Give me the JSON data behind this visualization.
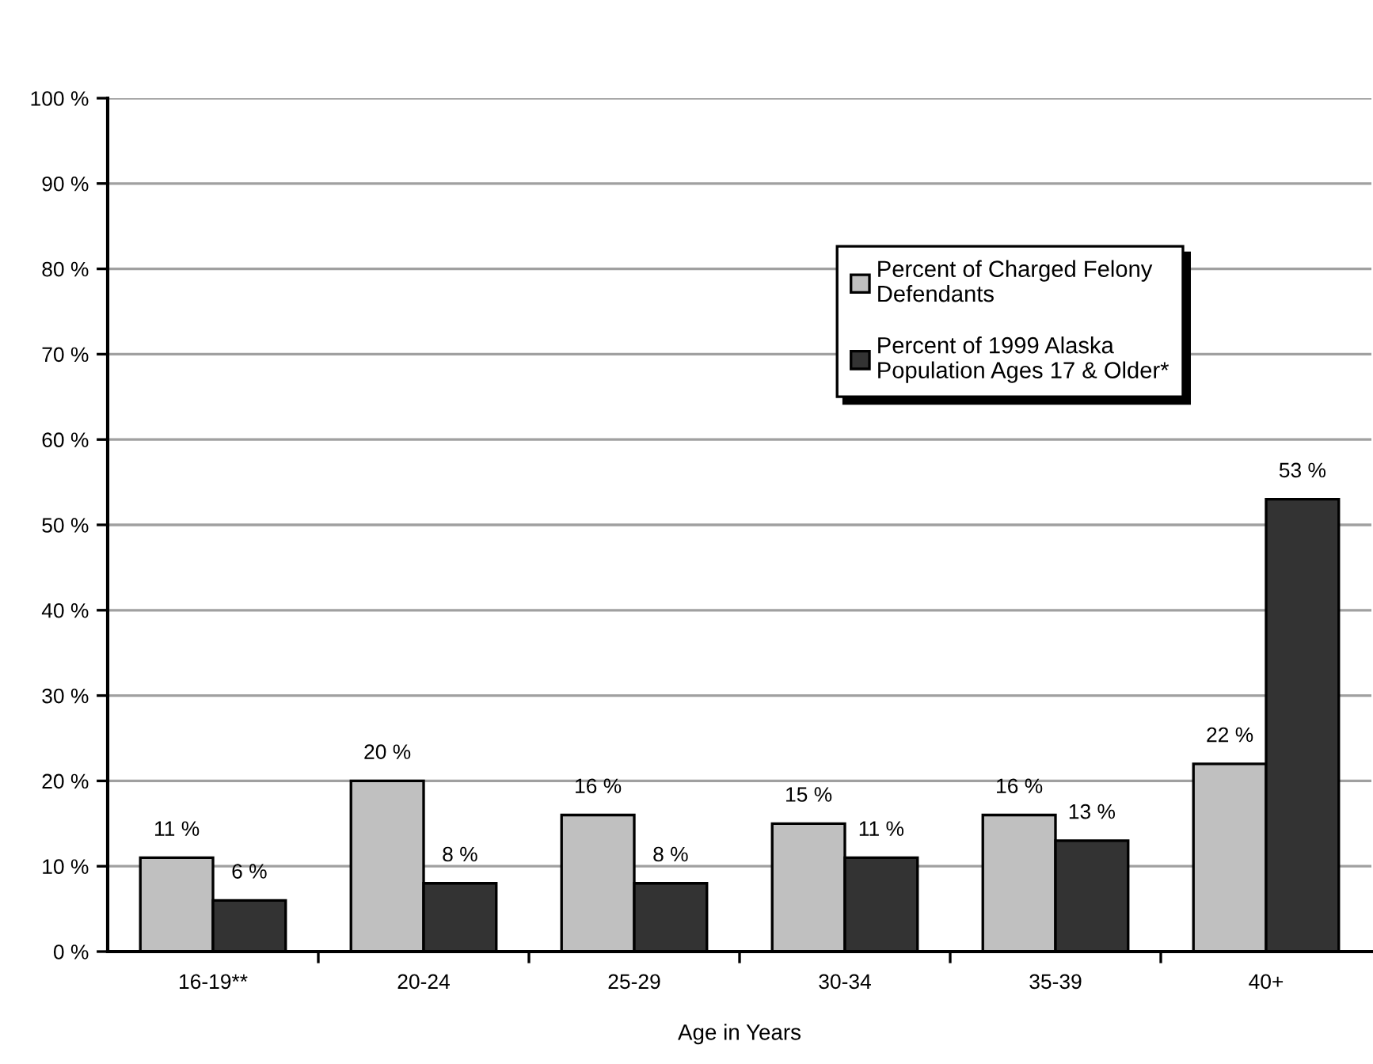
{
  "chart_data": {
    "type": "bar",
    "xlabel": "Age in Years",
    "categories": [
      "16-19**",
      "20-24",
      "25-29",
      "30-34",
      "35-39",
      "40+"
    ],
    "series": [
      {
        "name": "Percent of Charged Felony\nDefendants",
        "color": "#c0c0c0",
        "values": [
          11,
          20,
          16,
          15,
          16,
          22
        ],
        "value_labels": [
          "11 %",
          "20 %",
          "16 %",
          "15 %",
          "16 %",
          "22 %"
        ]
      },
      {
        "name": "Percent of 1999 Alaska\nPopulation Ages 17 & Older*",
        "color": "#333333",
        "values": [
          6,
          8,
          8,
          11,
          13,
          53
        ],
        "value_labels": [
          "6 %",
          "8 %",
          "8 %",
          "11 %",
          "13 %",
          "53 %"
        ]
      }
    ],
    "ylim": [
      0,
      100
    ],
    "yticks": [
      {
        "value": 0,
        "label": "0 %"
      },
      {
        "value": 10,
        "label": "10 %"
      },
      {
        "value": 20,
        "label": "20 %"
      },
      {
        "value": 30,
        "label": "30 %"
      },
      {
        "value": 40,
        "label": "40 %"
      },
      {
        "value": 50,
        "label": "50 %"
      },
      {
        "value": 60,
        "label": "60 %"
      },
      {
        "value": 70,
        "label": "70 %"
      },
      {
        "value": 80,
        "label": "80 %"
      },
      {
        "value": 90,
        "label": "90 %"
      },
      {
        "value": 100,
        "label": "100 %"
      }
    ],
    "grid": "y",
    "legend": "top right"
  }
}
